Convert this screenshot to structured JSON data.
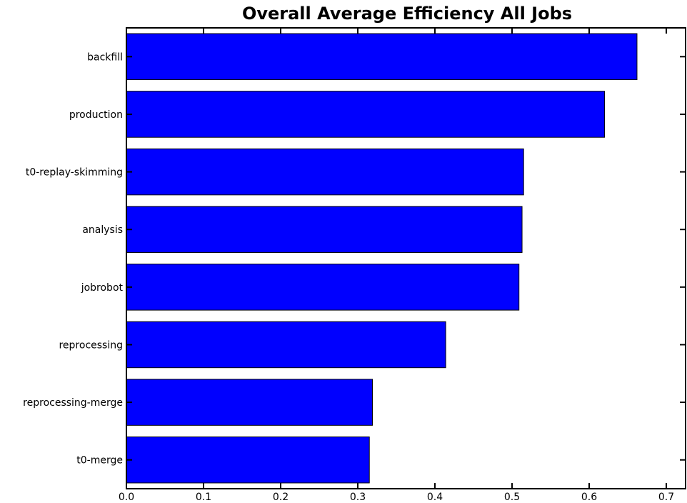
{
  "chart_data": {
    "type": "bar",
    "orientation": "horizontal",
    "title": "Overall Average Efficiency All Jobs",
    "xlabel": "",
    "ylabel": "",
    "categories": [
      "backfill",
      "production",
      "t0-replay-skimming",
      "analysis",
      "jobrobot",
      "reprocessing",
      "reprocessing-merge",
      "t0-merge"
    ],
    "values": [
      0.662,
      0.62,
      0.515,
      0.513,
      0.509,
      0.414,
      0.319,
      0.315
    ],
    "xlim": [
      0,
      0.725
    ],
    "xticks": [
      "0.0",
      "0.1",
      "0.2",
      "0.3",
      "0.4",
      "0.5",
      "0.6",
      "0.7"
    ],
    "bar_color": "#0000ff",
    "grid": false,
    "legend": "none"
  }
}
